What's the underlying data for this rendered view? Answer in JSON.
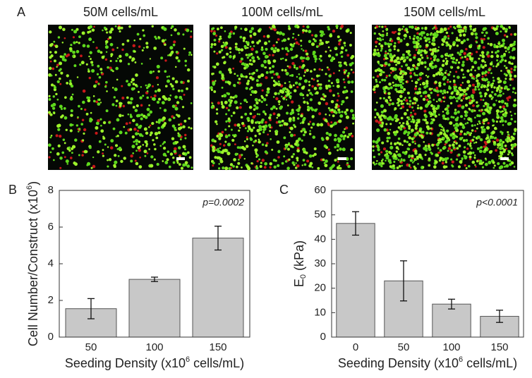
{
  "panels": [
    {
      "label": "A",
      "titles": [
        "50M cells/mL",
        "100M cells/mL",
        "150M cells/mL"
      ]
    }
  ],
  "chart_data": [
    {
      "type": "bar",
      "panel_label": "B",
      "categories": [
        "50",
        "100",
        "150"
      ],
      "values": [
        1.55,
        3.15,
        5.4
      ],
      "errors": [
        0.55,
        0.12,
        0.65
      ],
      "color": "#c8c8c8",
      "ylim": [
        0,
        8
      ],
      "yticks": [
        0,
        2,
        4,
        6,
        8
      ],
      "x_label": {
        "before": "Seeding Density (x10",
        "sup": "6",
        "after": " cells/mL)"
      },
      "y_label": {
        "before": "Cell Number/Construct (x10",
        "sup": "6",
        "after": ")"
      },
      "annotation": "p=0.0002"
    },
    {
      "type": "bar",
      "panel_label": "C",
      "categories": [
        "0",
        "50",
        "100",
        "150"
      ],
      "values": [
        46.5,
        23,
        13.5,
        8.5
      ],
      "errors": [
        4.8,
        8.2,
        2,
        2.5
      ],
      "color": "#c8c8c8",
      "ylim": [
        0,
        60
      ],
      "yticks": [
        0,
        10,
        20,
        30,
        40,
        50,
        60
      ],
      "x_label": {
        "before": "Seeding Density (x10",
        "sup": "6",
        "after": " cells/mL)"
      },
      "y_label": {
        "before": "E",
        "sub": "0",
        "after": " (kPa)"
      },
      "annotation": "p<0.0001"
    }
  ]
}
